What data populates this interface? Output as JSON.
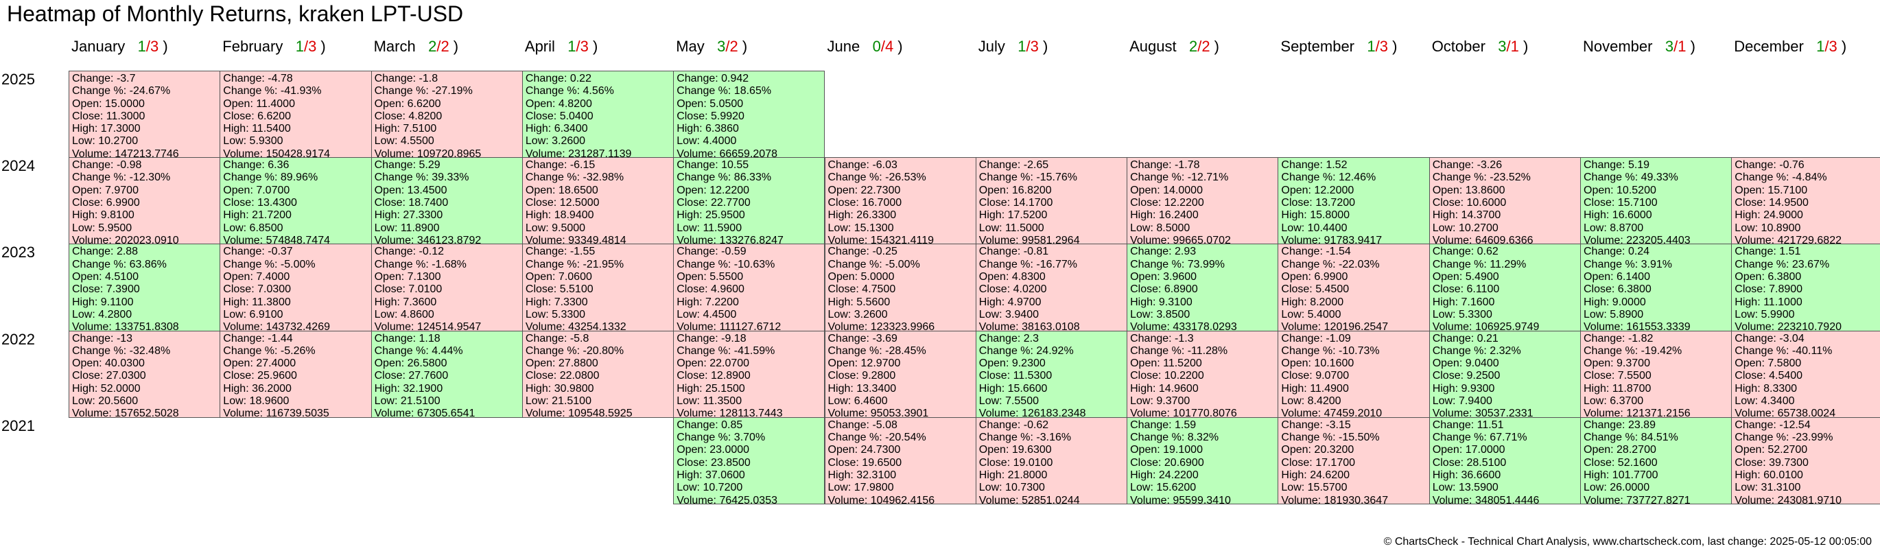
{
  "title": "Heatmap of Monthly Returns, kraken LPT-USD",
  "footer": "© ChartsCheck - Technical Chart Analysis, www.chartscheck.com, last change: 2025-05-12 00:05:00",
  "colors": {
    "positive": "#bbffbb",
    "negative": "#ffd3d3",
    "up_count": "#008800",
    "down_count": "#dd0000"
  },
  "chart_data": {
    "type": "heatmap",
    "title": "Heatmap of Monthly Returns, kraken LPT-USD",
    "months": [
      {
        "name": "January",
        "up": "1",
        "down": "3"
      },
      {
        "name": "February",
        "up": "1",
        "down": "3"
      },
      {
        "name": "March",
        "up": "2",
        "down": "2"
      },
      {
        "name": "April",
        "up": "1",
        "down": "3"
      },
      {
        "name": "May",
        "up": "3",
        "down": "2"
      },
      {
        "name": "June",
        "up": "0",
        "down": "4"
      },
      {
        "name": "July",
        "up": "1",
        "down": "3"
      },
      {
        "name": "August",
        "up": "2",
        "down": "2"
      },
      {
        "name": "September",
        "up": "1",
        "down": "3"
      },
      {
        "name": "October",
        "up": "3",
        "down": "1"
      },
      {
        "name": "November",
        "up": "3",
        "down": "1"
      },
      {
        "name": "December",
        "up": "1",
        "down": "3"
      }
    ],
    "years": [
      {
        "year": "2025",
        "cells": [
          {
            "month": "January",
            "change": "-3.7",
            "change_pct": "-24.67%",
            "open": "15.0000",
            "close": "11.3000",
            "high": "17.3000",
            "low": "10.2700",
            "volume": "147213.7746"
          },
          {
            "month": "February",
            "change": "-4.78",
            "change_pct": "-41.93%",
            "open": "11.4000",
            "close": "6.6200",
            "high": "11.5400",
            "low": "5.9300",
            "volume": "150428.9174"
          },
          {
            "month": "March",
            "change": "-1.8",
            "change_pct": "-27.19%",
            "open": "6.6200",
            "close": "4.8200",
            "high": "7.5100",
            "low": "4.5500",
            "volume": "109720.8965"
          },
          {
            "month": "April",
            "change": "0.22",
            "change_pct": "4.56%",
            "open": "4.8200",
            "close": "5.0400",
            "high": "6.3400",
            "low": "3.2600",
            "volume": "231287.1139"
          },
          {
            "month": "May",
            "change": "0.942",
            "change_pct": "18.65%",
            "open": "5.0500",
            "close": "5.9920",
            "high": "6.3860",
            "low": "4.4000",
            "volume": "66659.2078"
          }
        ]
      },
      {
        "year": "2024",
        "cells": [
          {
            "month": "January",
            "change": "-0.98",
            "change_pct": "-12.30%",
            "open": "7.9700",
            "close": "6.9900",
            "high": "9.8100",
            "low": "5.9500",
            "volume": "202023.0910"
          },
          {
            "month": "February",
            "change": "6.36",
            "change_pct": "89.96%",
            "open": "7.0700",
            "close": "13.4300",
            "high": "21.7200",
            "low": "6.8500",
            "volume": "574848.7474"
          },
          {
            "month": "March",
            "change": "5.29",
            "change_pct": "39.33%",
            "open": "13.4500",
            "close": "18.7400",
            "high": "27.3300",
            "low": "11.8900",
            "volume": "346123.8792"
          },
          {
            "month": "April",
            "change": "-6.15",
            "change_pct": "-32.98%",
            "open": "18.6500",
            "close": "12.5000",
            "high": "18.9400",
            "low": "9.5000",
            "volume": "93349.4814"
          },
          {
            "month": "May",
            "change": "10.55",
            "change_pct": "86.33%",
            "open": "12.2200",
            "close": "22.7700",
            "high": "25.9500",
            "low": "11.5900",
            "volume": "133276.8247"
          },
          {
            "month": "June",
            "change": "-6.03",
            "change_pct": "-26.53%",
            "open": "22.7300",
            "close": "16.7000",
            "high": "26.3300",
            "low": "15.1300",
            "volume": "154321.4119"
          },
          {
            "month": "July",
            "change": "-2.65",
            "change_pct": "-15.76%",
            "open": "16.8200",
            "close": "14.1700",
            "high": "17.5200",
            "low": "11.5000",
            "volume": "99581.2964"
          },
          {
            "month": "August",
            "change": "-1.78",
            "change_pct": "-12.71%",
            "open": "14.0000",
            "close": "12.2200",
            "high": "16.2400",
            "low": "8.5000",
            "volume": "99665.0702"
          },
          {
            "month": "September",
            "change": "1.52",
            "change_pct": "12.46%",
            "open": "12.2000",
            "close": "13.7200",
            "high": "15.8000",
            "low": "10.4400",
            "volume": "91783.9417"
          },
          {
            "month": "October",
            "change": "-3.26",
            "change_pct": "-23.52%",
            "open": "13.8600",
            "close": "10.6000",
            "high": "14.3700",
            "low": "10.2700",
            "volume": "64609.6366"
          },
          {
            "month": "November",
            "change": "5.19",
            "change_pct": "49.33%",
            "open": "10.5200",
            "close": "15.7100",
            "high": "16.6000",
            "low": "8.8700",
            "volume": "223205.4403"
          },
          {
            "month": "December",
            "change": "-0.76",
            "change_pct": "-4.84%",
            "open": "15.7100",
            "close": "14.9500",
            "high": "24.9000",
            "low": "10.8900",
            "volume": "421729.6822"
          }
        ]
      },
      {
        "year": "2023",
        "cells": [
          {
            "month": "January",
            "change": "2.88",
            "change_pct": "63.86%",
            "open": "4.5100",
            "close": "7.3900",
            "high": "9.1100",
            "low": "4.2800",
            "volume": "133751.8308"
          },
          {
            "month": "February",
            "change": "-0.37",
            "change_pct": "-5.00%",
            "open": "7.4000",
            "close": "7.0300",
            "high": "11.3800",
            "low": "6.9100",
            "volume": "143732.4269"
          },
          {
            "month": "March",
            "change": "-0.12",
            "change_pct": "-1.68%",
            "open": "7.1300",
            "close": "7.0100",
            "high": "7.3600",
            "low": "4.8600",
            "volume": "124514.9547"
          },
          {
            "month": "April",
            "change": "-1.55",
            "change_pct": "-21.95%",
            "open": "7.0600",
            "close": "5.5100",
            "high": "7.3300",
            "low": "5.3300",
            "volume": "43254.1332"
          },
          {
            "month": "May",
            "change": "-0.59",
            "change_pct": "-10.63%",
            "open": "5.5500",
            "close": "4.9600",
            "high": "7.2200",
            "low": "4.4500",
            "volume": "111127.6712"
          },
          {
            "month": "June",
            "change": "-0.25",
            "change_pct": "-5.00%",
            "open": "5.0000",
            "close": "4.7500",
            "high": "5.5600",
            "low": "3.2600",
            "volume": "123323.9966"
          },
          {
            "month": "July",
            "change": "-0.81",
            "change_pct": "-16.77%",
            "open": "4.8300",
            "close": "4.0200",
            "high": "4.9700",
            "low": "3.9400",
            "volume": "38163.0108"
          },
          {
            "month": "August",
            "change": "2.93",
            "change_pct": "73.99%",
            "open": "3.9600",
            "close": "6.8900",
            "high": "9.3100",
            "low": "3.8500",
            "volume": "433178.0293"
          },
          {
            "month": "September",
            "change": "-1.54",
            "change_pct": "-22.03%",
            "open": "6.9900",
            "close": "5.4500",
            "high": "8.2000",
            "low": "5.4000",
            "volume": "120196.2547"
          },
          {
            "month": "October",
            "change": "0.62",
            "change_pct": "11.29%",
            "open": "5.4900",
            "close": "6.1100",
            "high": "7.1600",
            "low": "5.3300",
            "volume": "106925.9749"
          },
          {
            "month": "November",
            "change": "0.24",
            "change_pct": "3.91%",
            "open": "6.1400",
            "close": "6.3800",
            "high": "9.0000",
            "low": "5.8900",
            "volume": "161553.3339"
          },
          {
            "month": "December",
            "change": "1.51",
            "change_pct": "23.67%",
            "open": "6.3800",
            "close": "7.8900",
            "high": "11.1000",
            "low": "5.9900",
            "volume": "223210.7920"
          }
        ]
      },
      {
        "year": "2022",
        "cells": [
          {
            "month": "January",
            "change": "-13",
            "change_pct": "-32.48%",
            "open": "40.0300",
            "close": "27.0300",
            "high": "52.0000",
            "low": "20.5600",
            "volume": "157652.5028"
          },
          {
            "month": "February",
            "change": "-1.44",
            "change_pct": "-5.26%",
            "open": "27.4000",
            "close": "25.9600",
            "high": "36.2000",
            "low": "18.9600",
            "volume": "116739.5035"
          },
          {
            "month": "March",
            "change": "1.18",
            "change_pct": "4.44%",
            "open": "26.5800",
            "close": "27.7600",
            "high": "32.1900",
            "low": "21.5100",
            "volume": "67305.6541"
          },
          {
            "month": "April",
            "change": "-5.8",
            "change_pct": "-20.80%",
            "open": "27.8800",
            "close": "22.0800",
            "high": "30.9800",
            "low": "21.5100",
            "volume": "109548.5925"
          },
          {
            "month": "May",
            "change": "-9.18",
            "change_pct": "-41.59%",
            "open": "22.0700",
            "close": "12.8900",
            "high": "25.1500",
            "low": "11.3500",
            "volume": "128113.7443"
          },
          {
            "month": "June",
            "change": "-3.69",
            "change_pct": "-28.45%",
            "open": "12.9700",
            "close": "9.2800",
            "high": "13.3400",
            "low": "6.4600",
            "volume": "95053.3901"
          },
          {
            "month": "July",
            "change": "2.3",
            "change_pct": "24.92%",
            "open": "9.2300",
            "close": "11.5300",
            "high": "15.6600",
            "low": "7.5500",
            "volume": "126183.2348"
          },
          {
            "month": "August",
            "change": "-1.3",
            "change_pct": "-11.28%",
            "open": "11.5200",
            "close": "10.2200",
            "high": "14.9600",
            "low": "9.3700",
            "volume": "101770.8076"
          },
          {
            "month": "September",
            "change": "-1.09",
            "change_pct": "-10.73%",
            "open": "10.1600",
            "close": "9.0700",
            "high": "11.4900",
            "low": "8.4200",
            "volume": "47459.2010"
          },
          {
            "month": "October",
            "change": "0.21",
            "change_pct": "2.32%",
            "open": "9.0400",
            "close": "9.2500",
            "high": "9.9300",
            "low": "7.9400",
            "volume": "30537.2331"
          },
          {
            "month": "November",
            "change": "-1.82",
            "change_pct": "-19.42%",
            "open": "9.3700",
            "close": "7.5500",
            "high": "11.8700",
            "low": "6.3700",
            "volume": "121371.2156"
          },
          {
            "month": "December",
            "change": "-3.04",
            "change_pct": "-40.11%",
            "open": "7.5800",
            "close": "4.5400",
            "high": "8.3300",
            "low": "4.3400",
            "volume": "65738.0024"
          }
        ]
      },
      {
        "year": "2021",
        "cells": [
          {
            "month": "May",
            "change": "0.85",
            "change_pct": "3.70%",
            "open": "23.0000",
            "close": "23.8500",
            "high": "37.0600",
            "low": "10.7200",
            "volume": "76425.0353"
          },
          {
            "month": "June",
            "change": "-5.08",
            "change_pct": "-20.54%",
            "open": "24.7300",
            "close": "19.6500",
            "high": "32.3100",
            "low": "17.9800",
            "volume": "104962.4156"
          },
          {
            "month": "July",
            "change": "-0.62",
            "change_pct": "-3.16%",
            "open": "19.6300",
            "close": "19.0100",
            "high": "21.8000",
            "low": "10.7300",
            "volume": "52851.0244"
          },
          {
            "month": "August",
            "change": "1.59",
            "change_pct": "8.32%",
            "open": "19.1000",
            "close": "20.6900",
            "high": "24.2200",
            "low": "15.6200",
            "volume": "95599.3410"
          },
          {
            "month": "September",
            "change": "-3.15",
            "change_pct": "-15.50%",
            "open": "20.3200",
            "close": "17.1700",
            "high": "24.6200",
            "low": "15.5700",
            "volume": "181930.3647"
          },
          {
            "month": "October",
            "change": "11.51",
            "change_pct": "67.71%",
            "open": "17.0000",
            "close": "28.5100",
            "high": "36.6600",
            "low": "13.5900",
            "volume": "348051.4446"
          },
          {
            "month": "November",
            "change": "23.89",
            "change_pct": "84.51%",
            "open": "28.2700",
            "close": "52.1600",
            "high": "101.7700",
            "low": "26.0000",
            "volume": "737727.8271"
          },
          {
            "month": "December",
            "change": "-12.54",
            "change_pct": "-23.99%",
            "open": "52.2700",
            "close": "39.7300",
            "high": "60.0100",
            "low": "31.3100",
            "volume": "243081.9710"
          }
        ]
      }
    ]
  }
}
